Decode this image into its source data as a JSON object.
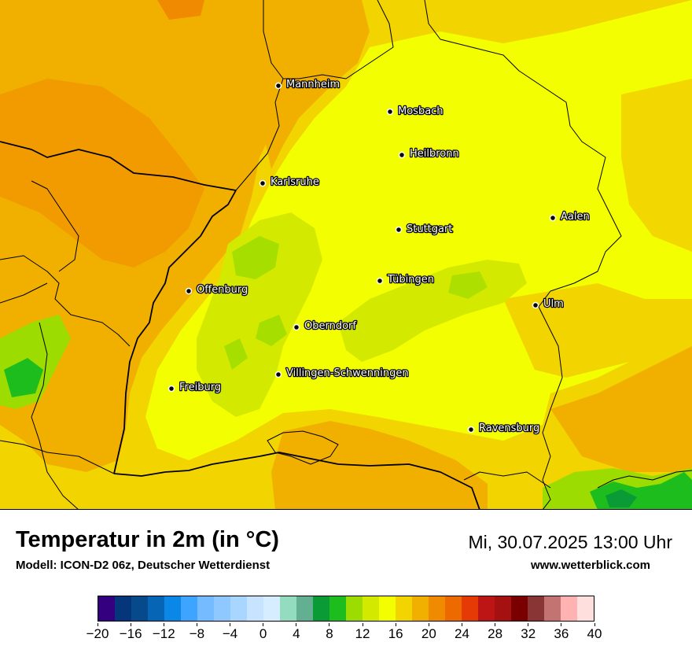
{
  "title": "Temperatur in 2m (in °C)",
  "subtitle": "Modell: ICON-D2 06z, Deutscher Wetterdienst",
  "datetime": "Mi, 30.07.2025 13:00 Uhr",
  "website": "www.wetterblick.com",
  "cities": [
    {
      "name": "Mannheim",
      "key": "mannheim"
    },
    {
      "name": "Mosbach",
      "key": "mosbach"
    },
    {
      "name": "Heilbronn",
      "key": "heilbronn"
    },
    {
      "name": "Karlsruhe",
      "key": "karlsruhe"
    },
    {
      "name": "Aalen",
      "key": "aalen"
    },
    {
      "name": "Stuttgart",
      "key": "stuttgart"
    },
    {
      "name": "Tübingen",
      "key": "tuebingen"
    },
    {
      "name": "Offenburg",
      "key": "offenburg"
    },
    {
      "name": "Ulm",
      "key": "ulm"
    },
    {
      "name": "Oberndorf",
      "key": "oberndorf"
    },
    {
      "name": "Villingen-Schwenningen",
      "key": "villingen-schwenningen"
    },
    {
      "name": "Freiburg",
      "key": "freiburg"
    },
    {
      "name": "Ravensburg",
      "key": "ravensburg"
    }
  ],
  "legend": {
    "min": -20,
    "max": 40,
    "step": 2,
    "tick_labels": [
      "−20",
      "−16",
      "−12",
      "−8",
      "−4",
      "0",
      "4",
      "8",
      "12",
      "16",
      "20",
      "24",
      "28",
      "32",
      "36",
      "40"
    ],
    "colors": [
      "#35007f",
      "#05357a",
      "#064a8c",
      "#0765b5",
      "#0b87e8",
      "#3da5ff",
      "#74bcff",
      "#8fc8ff",
      "#a9d6ff",
      "#c6e4ff",
      "#d6ecff",
      "#94dcc0",
      "#62b091",
      "#0a9a36",
      "#1ebd1e",
      "#9ddc00",
      "#d3ea00",
      "#f3ff00",
      "#f2d400",
      "#f1b000",
      "#f08a00",
      "#ed6a00",
      "#e63a06",
      "#bd1515",
      "#a51010",
      "#7a0000",
      "#8a3535",
      "#c47373",
      "#ffb2b2",
      "#ffdede"
    ]
  },
  "map_colors": {
    "temp_26": "#f08a00",
    "temp_24": "#f1b000",
    "temp_22": "#f2d400",
    "temp_20": "#f3ff00",
    "temp_18": "#d3ea00",
    "temp_16": "#9ddc00",
    "temp_14": "#1ebd1e",
    "temp_12": "#0a9a36"
  }
}
